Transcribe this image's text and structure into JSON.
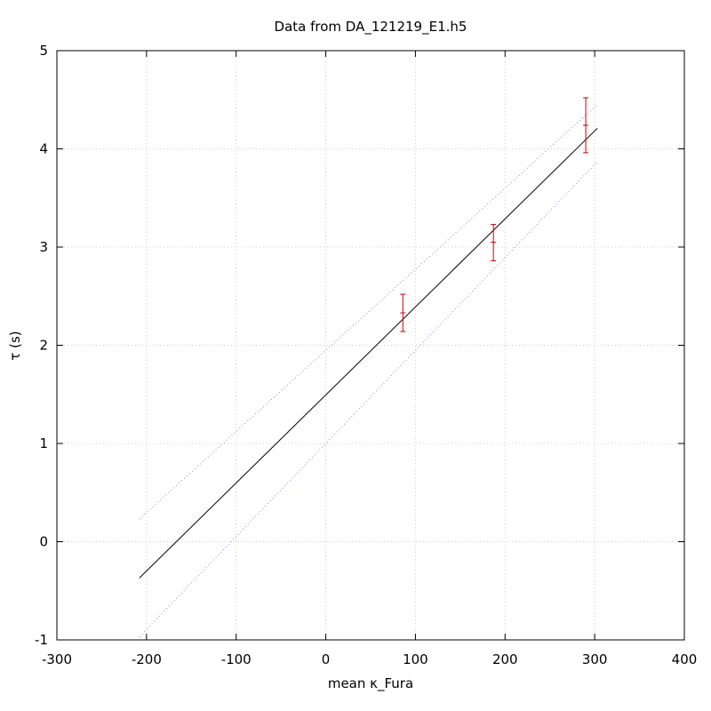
{
  "chart_data": {
    "type": "scatter",
    "title": "Data from DA_121219_E1.h5",
    "xlabel": "mean κ_Fura",
    "ylabel": "τ (s)",
    "xlim": [
      -300,
      400
    ],
    "ylim": [
      -1,
      5
    ],
    "xticks": [
      "-300",
      "-100",
      "-200",
      "0",
      "100",
      "200",
      "300",
      "400"
    ],
    "xtick_values": [
      -300,
      -100,
      -200,
      0,
      100,
      200,
      300,
      400
    ],
    "yticks": [
      "-1",
      "0",
      "1",
      "2",
      "3",
      "4",
      "5"
    ],
    "ytick_values": [
      -1,
      0,
      1,
      2,
      3,
      4,
      5
    ],
    "grid": true,
    "points": [
      {
        "x": 86,
        "y": 2.33,
        "ylow": 2.14,
        "yhigh": 2.52
      },
      {
        "x": 187,
        "y": 3.05,
        "ylow": 2.86,
        "yhigh": 3.23
      },
      {
        "x": 290,
        "y": 4.24,
        "ylow": 3.96,
        "yhigh": 4.52
      }
    ],
    "fit_line": {
      "x": [
        -208,
        303
      ],
      "y": [
        -0.37,
        4.21
      ]
    },
    "confidence_upper": {
      "x": [
        -208,
        303
      ],
      "y": [
        0.23,
        4.45
      ]
    },
    "confidence_lower": {
      "x": [
        -208,
        303
      ],
      "y": [
        -0.97,
        3.87
      ]
    },
    "colors": {
      "points": "#cc0000",
      "fit": "#000000",
      "confidence": "#8888dd",
      "grid": "#cccccc"
    }
  }
}
